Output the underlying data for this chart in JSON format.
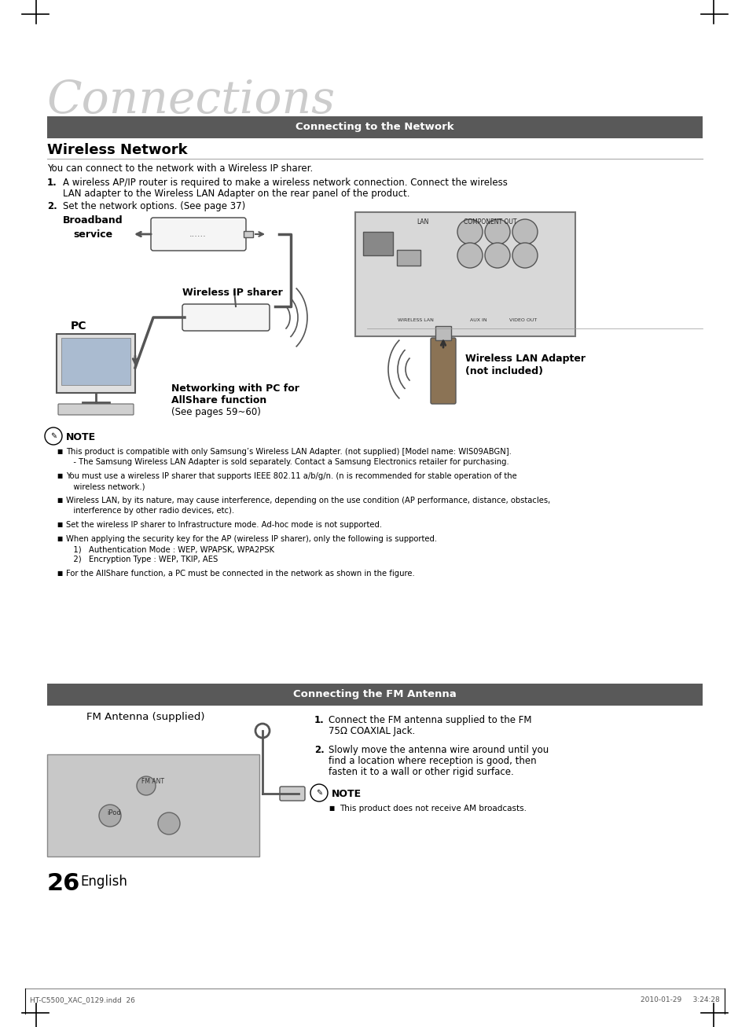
{
  "page_bg": "#ffffff",
  "title_text": "Connections",
  "title_font_size": 38,
  "title_color": "#cccccc",
  "section1_header": "Connecting to the Network",
  "section1_header_bg": "#595959",
  "section1_header_color": "#ffffff",
  "section2_header": "Connecting the FM Antenna",
  "section2_header_bg": "#595959",
  "section2_header_color": "#ffffff",
  "wn_title": "Wireless Network",
  "intro_text": "You can connect to the network with a Wireless IP sharer.",
  "label_broadband": "Broadband\nservice",
  "label_wireless_ip": "Wireless IP sharer",
  "label_pc": "PC",
  "label_networking": "Networking with PC for\nAllShare function\n(See pages 59~60)",
  "label_wlan_adapter": "Wireless LAN Adapter\n(not included)",
  "note_header": "NOTE",
  "note_bullets": [
    "This product is compatible with only Samsung’s Wireless LAN Adapter. (not supplied) [Model name: WIS09ABGN].\n   - The Samsung Wireless LAN Adapter is sold separately. Contact a Samsung Electronics retailer for purchasing.",
    "You must use a wireless IP sharer that supports IEEE 802.11 a/b/g/n. (n is recommended for stable operation of the\n   wireless network.)",
    "Wireless LAN, by its nature, may cause interference, depending on the use condition (AP performance, distance, obstacles,\n   interference by other radio devices, etc).",
    "Set the wireless IP sharer to Infrastructure mode. Ad-hoc mode is not supported.",
    "When applying the security key for the AP (wireless IP sharer), only the following is supported.\n   1)   Authentication Mode : WEP, WPAPSK, WPA2PSK\n   2)   Encryption Type : WEP, TKIP, AES",
    "For the AllShare function, a PC must be connected in the network as shown in the figure."
  ],
  "fm_label": "FM Antenna (supplied)",
  "fm_note_header": "NOTE",
  "fm_note_bullets": [
    "This product does not receive AM broadcasts."
  ],
  "page_number": "26",
  "page_lang": "English",
  "footer_left": "HT-C5500_XAC_0129.indd  26",
  "footer_right": "2010-01-29     3:24:28"
}
